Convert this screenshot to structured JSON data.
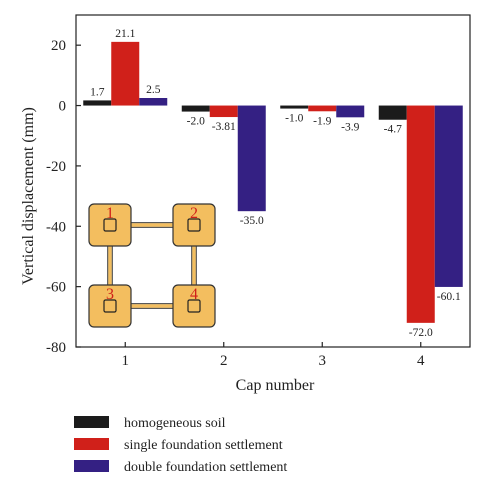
{
  "chart_data": {
    "type": "bar",
    "categories": [
      "1",
      "2",
      "3",
      "4"
    ],
    "xlabel": "Cap number",
    "ylabel": "Vertical displacement (mm)",
    "ylim": [
      -80,
      30
    ],
    "yticks": [
      20,
      0,
      -20,
      -40,
      -60,
      -80
    ],
    "ytick_labels": [
      "20",
      "0",
      "-20",
      "-40",
      "-60",
      "-80"
    ],
    "legend_position": "bottom",
    "grid": false,
    "series": [
      {
        "name": "homogeneous soil",
        "color": "#1b1b1b",
        "values": [
          1.7,
          -2.0,
          -1.0,
          -4.7
        ],
        "labels": [
          "1.7",
          "-2.0",
          "-1.0",
          "-4.7"
        ]
      },
      {
        "name": "single foundation settlement",
        "color": "#d0201a",
        "values": [
          21.1,
          -3.81,
          -1.9,
          -72.0
        ],
        "labels": [
          "21.1",
          "-3.81",
          "-1.9",
          "-72.0"
        ]
      },
      {
        "name": "double foundation settlement",
        "color": "#342083",
        "values": [
          2.5,
          -35.0,
          -3.9,
          -60.1
        ],
        "labels": [
          "2.5",
          "-35.0",
          "-3.9",
          "-60.1"
        ]
      }
    ]
  },
  "inset": {
    "node_fill": "#f3be5f",
    "beam_color": "#f3be5f",
    "nodes": [
      "1",
      "2",
      "3",
      "4"
    ]
  }
}
